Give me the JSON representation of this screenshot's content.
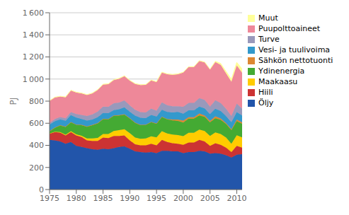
{
  "chart_data": {
    "type": "area",
    "stacked": true,
    "ylabel": "PJ",
    "x": [
      1975,
      1976,
      1977,
      1978,
      1979,
      1980,
      1981,
      1982,
      1983,
      1984,
      1985,
      1986,
      1987,
      1988,
      1989,
      1990,
      1991,
      1992,
      1993,
      1994,
      1995,
      1996,
      1997,
      1998,
      1999,
      2000,
      2001,
      2002,
      2003,
      2004,
      2005,
      2006,
      2007,
      2008,
      2009,
      2010,
      2011
    ],
    "series": [
      {
        "name": "Öljy",
        "color": "#2255aa",
        "values": [
          450,
          445,
          435,
          415,
          430,
          395,
          385,
          375,
          365,
          360,
          370,
          365,
          375,
          385,
          390,
          370,
          345,
          340,
          335,
          340,
          330,
          350,
          350,
          345,
          345,
          330,
          340,
          340,
          350,
          345,
          325,
          330,
          325,
          310,
          290,
          315,
          320
        ]
      },
      {
        "name": "Hiili",
        "color": "#cc3333",
        "values": [
          55,
          75,
          80,
          75,
          90,
          95,
          90,
          70,
          75,
          80,
          100,
          100,
          110,
          100,
          100,
          75,
          65,
          60,
          65,
          75,
          70,
          100,
          80,
          75,
          70,
          75,
          85,
          85,
          100,
          90,
          70,
          90,
          80,
          70,
          50,
          80,
          60
        ]
      },
      {
        "name": "Maakaasu",
        "color": "#ffcc00",
        "values": [
          3,
          4,
          5,
          6,
          8,
          10,
          12,
          18,
          22,
          28,
          32,
          38,
          45,
          52,
          55,
          65,
          60,
          60,
          62,
          67,
          72,
          78,
          78,
          78,
          78,
          78,
          88,
          88,
          92,
          95,
          90,
          97,
          97,
          90,
          75,
          97,
          92
        ]
      },
      {
        "name": "Ydinenergia",
        "color": "#44aa33",
        "values": [
          18,
          35,
          60,
          70,
          80,
          85,
          95,
          105,
          120,
          130,
          135,
          133,
          138,
          133,
          133,
          133,
          133,
          123,
          123,
          128,
          123,
          128,
          128,
          128,
          128,
          123,
          128,
          128,
          128,
          128,
          123,
          128,
          128,
          123,
          123,
          128,
          123
        ]
      },
      {
        "name": "Sähkön nettotuonti",
        "color": "#dd8833",
        "values": [
          3,
          3,
          3,
          3,
          3,
          3,
          3,
          3,
          3,
          3,
          3,
          3,
          3,
          3,
          3,
          3,
          3,
          3,
          3,
          3,
          3,
          3,
          3,
          8,
          13,
          18,
          13,
          13,
          18,
          13,
          13,
          18,
          13,
          8,
          8,
          13,
          13
        ]
      },
      {
        "name": "Vesi- ja tuulivoima",
        "color": "#3399cc",
        "values": [
          58,
          58,
          53,
          53,
          63,
          63,
          53,
          53,
          48,
          53,
          53,
          53,
          48,
          53,
          63,
          58,
          63,
          63,
          58,
          63,
          63,
          63,
          63,
          63,
          68,
          63,
          63,
          63,
          63,
          63,
          63,
          68,
          68,
          63,
          63,
          68,
          63
        ]
      },
      {
        "name": "Turve",
        "color": "#9999bb",
        "values": [
          15,
          18,
          20,
          23,
          27,
          32,
          37,
          42,
          47,
          52,
          57,
          57,
          62,
          62,
          62,
          57,
          52,
          52,
          52,
          57,
          52,
          67,
          62,
          57,
          52,
          62,
          67,
          67,
          77,
          77,
          67,
          77,
          72,
          67,
          57,
          77,
          62
        ]
      },
      {
        "name": "Puupolttoaineet",
        "color": "#ee8899",
        "values": [
          200,
          195,
          185,
          190,
          195,
          195,
          195,
          190,
          190,
          195,
          200,
          205,
          210,
          215,
          220,
          225,
          235,
          245,
          250,
          255,
          260,
          270,
          280,
          285,
          290,
          310,
          325,
          325,
          335,
          340,
          335,
          345,
          345,
          320,
          310,
          345,
          325
        ]
      },
      {
        "name": "Muut",
        "color": "#ffff99",
        "values": [
          3,
          3,
          3,
          3,
          3,
          3,
          3,
          3,
          3,
          3,
          3,
          3,
          3,
          3,
          3,
          3,
          3,
          3,
          3,
          3,
          3,
          3,
          3,
          3,
          3,
          3,
          3,
          3,
          3,
          3,
          3,
          8,
          13,
          18,
          23,
          28,
          33
        ]
      }
    ],
    "xlim": [
      1975,
      2011
    ],
    "xticks": [
      1975,
      1980,
      1985,
      1990,
      1995,
      2000,
      2005,
      2010
    ],
    "ylim": [
      0,
      1600
    ],
    "yticks": [
      0,
      200,
      400,
      600,
      800,
      {
        "value": 1000,
        "label": "1 000"
      },
      {
        "value": 1200,
        "label": "1 200"
      },
      {
        "value": 1400,
        "label": "1 400"
      },
      {
        "value": 1600,
        "label": "1 600"
      }
    ],
    "grid": "y",
    "legend": "right"
  }
}
